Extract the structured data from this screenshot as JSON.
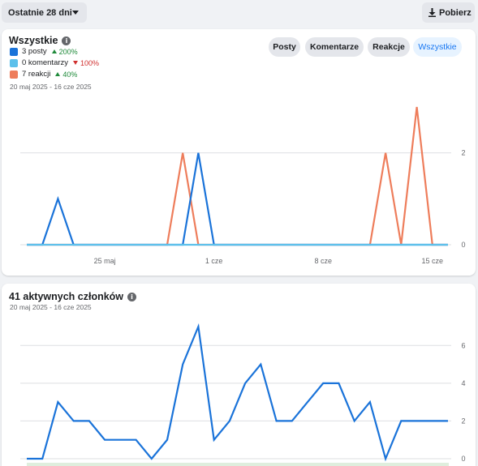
{
  "toolbar": {
    "range_label": "Ostatnie 28 dni",
    "download_label": "Pobierz"
  },
  "panel1": {
    "title": "Wszystkie",
    "daterange": "20 maj 2025 - 16 cze 2025",
    "tabs": [
      {
        "label": "Posty",
        "active": false
      },
      {
        "label": "Komentarze",
        "active": false
      },
      {
        "label": "Reakcje",
        "active": false
      },
      {
        "label": "Wszystkie",
        "active": true
      }
    ],
    "legend": [
      {
        "label": "3 posty",
        "delta": "200%",
        "direction": "up",
        "color": "#1a73d9"
      },
      {
        "label": "0 komentarzy",
        "delta": "100%",
        "direction": "down",
        "color": "#5bc0eb"
      },
      {
        "label": "7 reakcji",
        "delta": "40%",
        "direction": "up",
        "color": "#ee7d5b"
      }
    ]
  },
  "panel2": {
    "title": "41 aktywnych członków",
    "daterange": "20 maj 2025 - 16 cze 2025"
  },
  "colors": {
    "posts": "#1a73d9",
    "comments": "#5bc0eb",
    "reactions": "#ee7d5b",
    "members": "#1a73d9",
    "grid": "#dddfe2"
  },
  "chart_data": [
    {
      "type": "line",
      "x": [
        "20 maj",
        "21 maj",
        "22 maj",
        "23 maj",
        "24 maj",
        "25 maj",
        "26 maj",
        "27 maj",
        "28 maj",
        "29 maj",
        "30 maj",
        "31 maj",
        "1 cze",
        "2 cze",
        "3 cze",
        "4 cze",
        "5 cze",
        "6 cze",
        "7 cze",
        "8 cze",
        "9 cze",
        "10 cze",
        "11 cze",
        "12 cze",
        "13 cze",
        "14 cze",
        "15 cze",
        "16 cze"
      ],
      "xticks": [
        "25 maj",
        "1 cze",
        "8 cze",
        "15 cze"
      ],
      "ylim": [
        0,
        3
      ],
      "yticks": [
        0,
        2
      ],
      "series": [
        {
          "name": "posty",
          "values": [
            0,
            0,
            1,
            0,
            0,
            0,
            0,
            0,
            0,
            0,
            0,
            2,
            0,
            0,
            0,
            0,
            0,
            0,
            0,
            0,
            0,
            0,
            0,
            0,
            0,
            0,
            0,
            0
          ]
        },
        {
          "name": "komentarze",
          "values": [
            0,
            0,
            0,
            0,
            0,
            0,
            0,
            0,
            0,
            0,
            0,
            0,
            0,
            0,
            0,
            0,
            0,
            0,
            0,
            0,
            0,
            0,
            0,
            0,
            0,
            0,
            0,
            0
          ]
        },
        {
          "name": "reakcje",
          "values": [
            0,
            0,
            0,
            0,
            0,
            0,
            0,
            0,
            0,
            0,
            2,
            0,
            0,
            0,
            0,
            0,
            0,
            0,
            0,
            0,
            0,
            0,
            0,
            2,
            0,
            3,
            0,
            0
          ]
        }
      ],
      "grid": true
    },
    {
      "type": "line",
      "x": [
        "20 maj",
        "21 maj",
        "22 maj",
        "23 maj",
        "24 maj",
        "25 maj",
        "26 maj",
        "27 maj",
        "28 maj",
        "29 maj",
        "30 maj",
        "31 maj",
        "1 cze",
        "2 cze",
        "3 cze",
        "4 cze",
        "5 cze",
        "6 cze",
        "7 cze",
        "8 cze",
        "9 cze",
        "10 cze",
        "11 cze",
        "12 cze",
        "13 cze",
        "14 cze",
        "15 cze",
        "16 cze"
      ],
      "ylim": [
        0,
        7
      ],
      "yticks": [
        0,
        2,
        4,
        6
      ],
      "series": [
        {
          "values": [
            0,
            0,
            3,
            2,
            2,
            1,
            1,
            1,
            0,
            1,
            5,
            7,
            1,
            2,
            4,
            5,
            2,
            2,
            3,
            4,
            4,
            2,
            3,
            0,
            2,
            2,
            2,
            2
          ]
        }
      ],
      "grid": true
    }
  ]
}
